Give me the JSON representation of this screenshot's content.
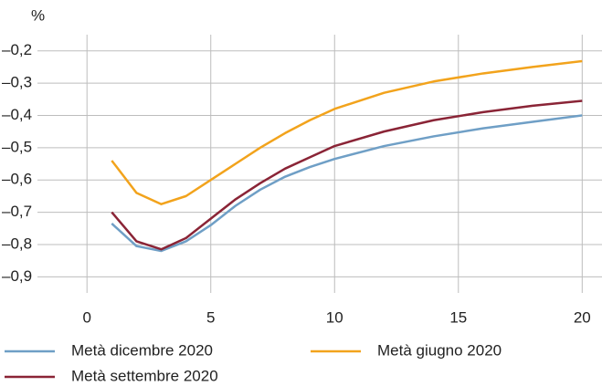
{
  "chart_data": {
    "type": "line",
    "y_label": "%",
    "x": [
      1,
      2,
      3,
      4,
      5,
      6,
      7,
      8,
      9,
      10,
      12,
      14,
      16,
      18,
      20
    ],
    "series": [
      {
        "name": "Metà dicembre 2020",
        "color": "#6f9fc6",
        "values": [
          -0.735,
          -0.805,
          -0.82,
          -0.79,
          -0.74,
          -0.68,
          -0.63,
          -0.59,
          -0.56,
          -0.535,
          -0.495,
          -0.465,
          -0.44,
          -0.42,
          -0.4
        ]
      },
      {
        "name": "Metà giugno 2020",
        "color": "#f2a31c",
        "values": [
          -0.54,
          -0.64,
          -0.675,
          -0.65,
          -0.6,
          -0.55,
          -0.5,
          -0.455,
          -0.415,
          -0.38,
          -0.33,
          -0.295,
          -0.27,
          -0.25,
          -0.232
        ]
      },
      {
        "name": "Metà settembre 2020",
        "color": "#8a2436",
        "values": [
          -0.7,
          -0.79,
          -0.815,
          -0.78,
          -0.72,
          -0.66,
          -0.61,
          -0.565,
          -0.53,
          -0.495,
          -0.45,
          -0.415,
          -0.39,
          -0.37,
          -0.355
        ]
      }
    ],
    "xlim": [
      -2,
      20.8
    ],
    "ylim": [
      -0.95,
      -0.15
    ],
    "xticks": [
      0,
      5,
      10,
      15,
      20
    ],
    "yticks": [
      {
        "value": -0.2,
        "label": "–0,2"
      },
      {
        "value": -0.3,
        "label": "–0,3"
      },
      {
        "value": -0.4,
        "label": "–0,4"
      },
      {
        "value": -0.5,
        "label": "–0,5"
      },
      {
        "value": -0.6,
        "label": "–0,6"
      },
      {
        "value": -0.7,
        "label": "–0,7"
      },
      {
        "value": -0.8,
        "label": "–0,8"
      },
      {
        "value": -0.9,
        "label": "–0,9"
      }
    ],
    "grid": true
  }
}
